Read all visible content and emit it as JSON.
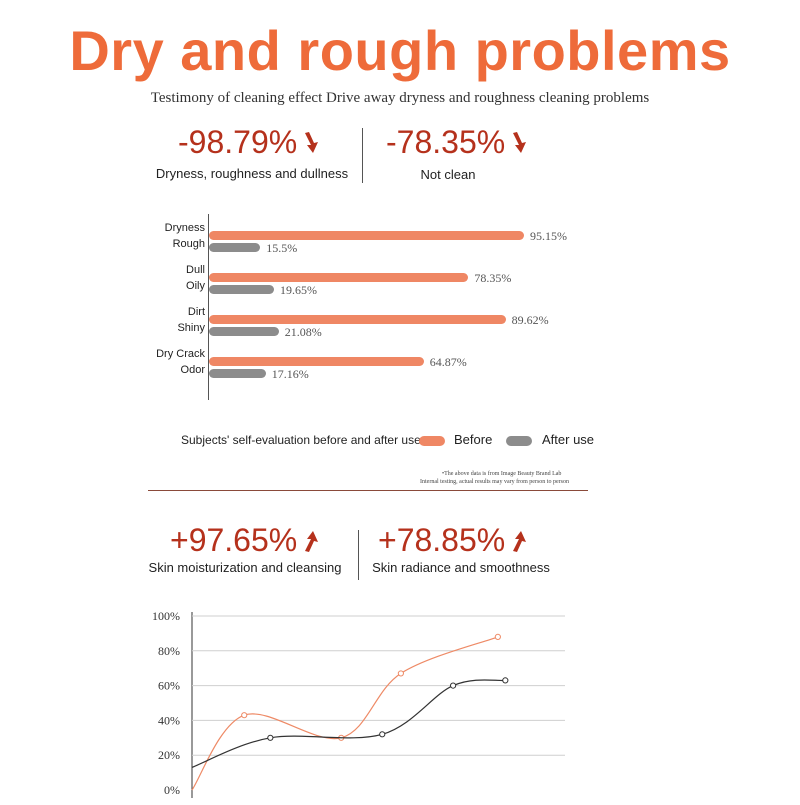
{
  "header": {
    "title": "Dry and rough problems",
    "subtitle": "Testimony of cleaning effect Drive away dryness and roughness cleaning problems"
  },
  "top_stats": [
    {
      "value": "-98.79%",
      "label": "Dryness, roughness and dullness",
      "direction": "down"
    },
    {
      "value": "-78.35%",
      "label": "Not clean",
      "direction": "down"
    }
  ],
  "bottom_stats": [
    {
      "value": "+97.65%",
      "label": "Skin moisturization and cleansing",
      "direction": "up"
    },
    {
      "value": "+78.85%",
      "label": "Skin radiance and smoothness",
      "direction": "up"
    }
  ],
  "legend": {
    "caption": "Subjects' self-evaluation before and after use",
    "before": "Before",
    "after": "After use"
  },
  "footnote": {
    "line1": "•The above data is from Image Beauty Brand Lab",
    "line2": "Internal testing, actual results may vary from person to person"
  },
  "colors": {
    "accent": "#ee6b3a",
    "stat": "#b5311c",
    "before_bar": "#ef8764",
    "after_bar": "#8c8c8c",
    "line_orange": "#ee8a66",
    "line_dark": "#333333"
  },
  "chart_data": [
    {
      "type": "bar",
      "orientation": "horizontal",
      "groups": [
        {
          "before_label": "Dryness",
          "after_label": "Rough",
          "before": 95.15,
          "after": 15.5,
          "before_text": "95.15%",
          "after_text": "15.5%"
        },
        {
          "before_label": "Dull",
          "after_label": "Oily",
          "before": 78.35,
          "after": 19.65,
          "before_text": "78.35%",
          "after_text": "19.65%"
        },
        {
          "before_label": "Dirt",
          "after_label": "Shiny",
          "before": 89.62,
          "after": 21.08,
          "before_text": "89.62%",
          "after_text": "21.08%"
        },
        {
          "before_label": "Dry Crack",
          "after_label": "Odor",
          "before": 64.87,
          "after": 17.16,
          "before_text": "64.87%",
          "after_text": "17.16%"
        }
      ],
      "series": [
        {
          "name": "Before"
        },
        {
          "name": "After use"
        }
      ],
      "xlim": [
        0,
        100
      ]
    },
    {
      "type": "line",
      "yticks": [
        "100%",
        "80%",
        "60%",
        "40%",
        "20%",
        "0%"
      ],
      "ylim": [
        0,
        100
      ],
      "xlim": [
        0,
        100
      ],
      "series": [
        {
          "name": "orange",
          "points": [
            [
              14,
              43
            ],
            [
              40,
              30
            ],
            [
              56,
              67
            ],
            [
              82,
              88
            ]
          ],
          "start": [
            0,
            0
          ]
        },
        {
          "name": "dark",
          "points": [
            [
              21,
              30
            ],
            [
              51,
              32
            ],
            [
              70,
              60
            ],
            [
              84,
              63
            ]
          ],
          "start": [
            0,
            13
          ]
        }
      ]
    }
  ]
}
